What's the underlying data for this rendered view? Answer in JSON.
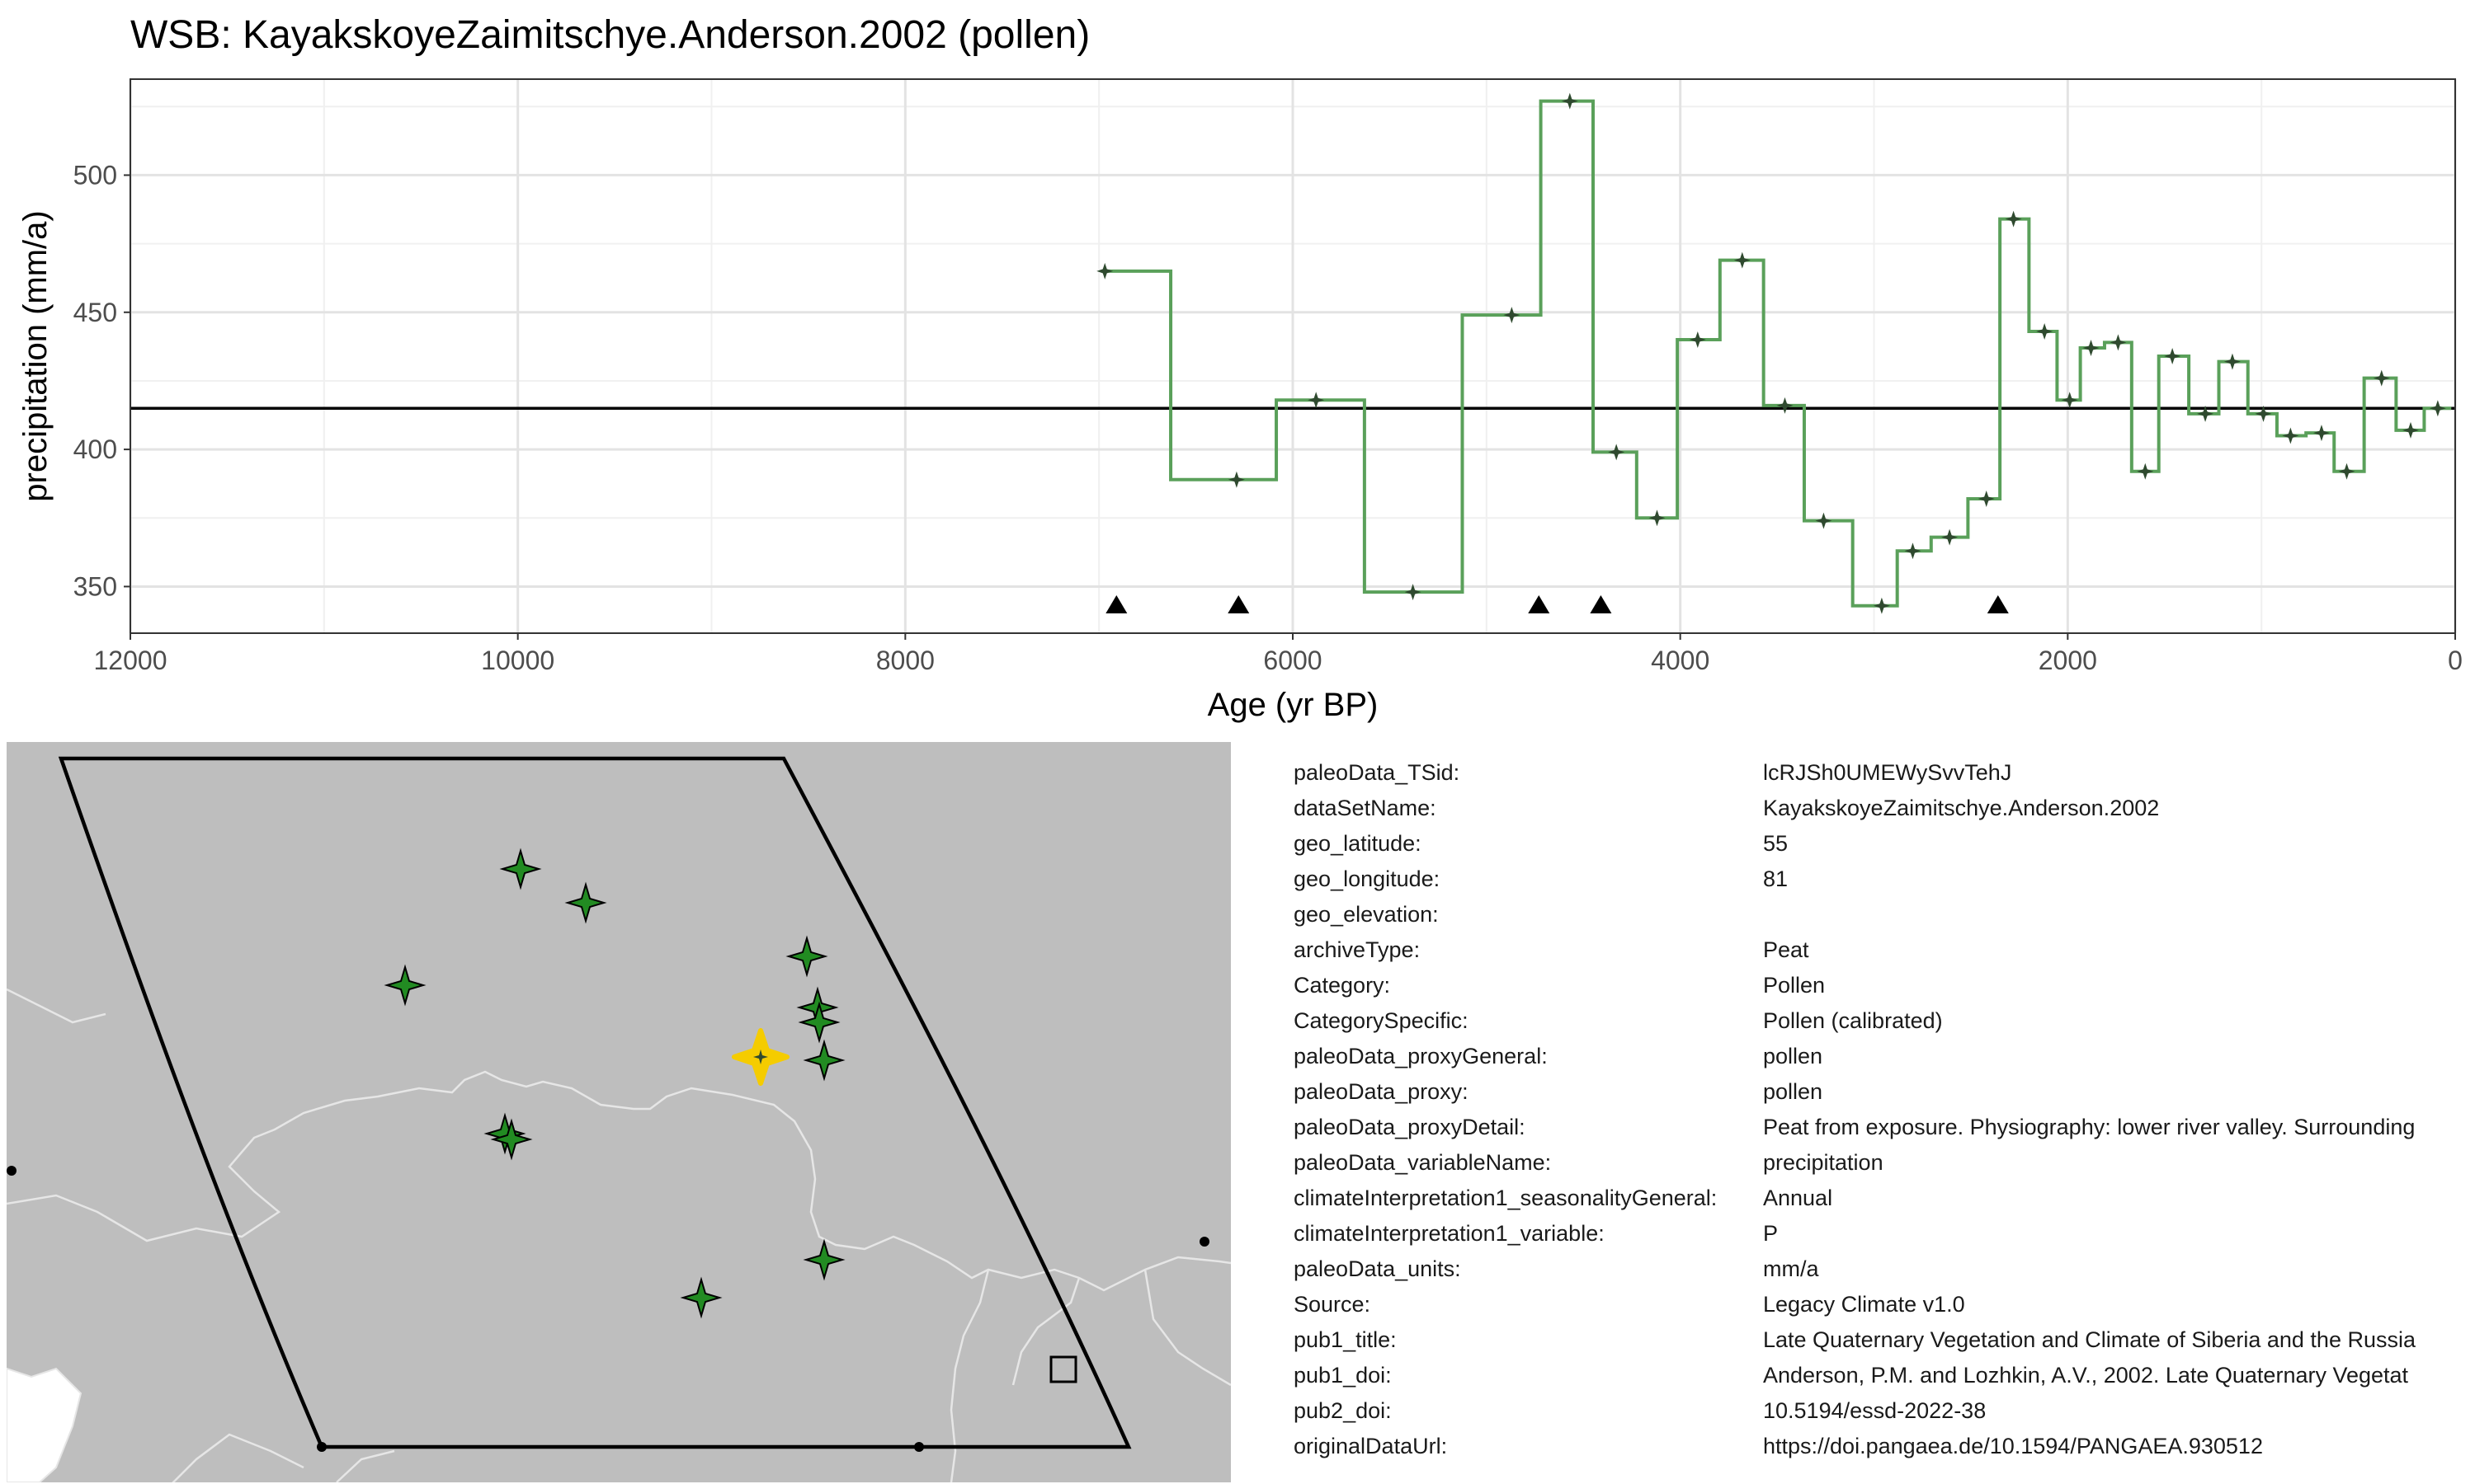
{
  "chart_data": {
    "type": "line",
    "title": "WSB: KayakskoyeZaimitschye.Anderson.2002 (pollen)",
    "xlabel": "Age (yr BP)",
    "ylabel": "precipitation (mm/a)",
    "x_reversed": true,
    "xlim": [
      12000,
      0
    ],
    "ylim": [
      333,
      535
    ],
    "x_ticks": [
      12000,
      10000,
      8000,
      6000,
      4000,
      2000,
      0
    ],
    "y_ticks": [
      350,
      400,
      450,
      500
    ],
    "grid": true,
    "mean_line": 415,
    "line_style": "step",
    "line_color": "#5aa05a",
    "point_color": "#2f4a2f",
    "series": [
      {
        "x": [
          6970,
          6290,
          5880,
          5380,
          4870,
          4570,
          4330,
          4120,
          3910,
          3680,
          3460,
          3260,
          2960,
          2800,
          2610,
          2420,
          2280,
          2120,
          1990,
          1880,
          1740,
          1600,
          1460,
          1290,
          1150,
          990,
          850,
          690,
          560,
          380,
          230,
          90
        ],
        "y": [
          465,
          389,
          418,
          348,
          449,
          527,
          399,
          375,
          440,
          469,
          416,
          374,
          343,
          363,
          368,
          382,
          484,
          443,
          418,
          437,
          439,
          392,
          434,
          413,
          432,
          413,
          405,
          406,
          392,
          426,
          407,
          415
        ]
      }
    ],
    "markers": {
      "shape": "triangle",
      "x": [
        6910,
        6280,
        4730,
        4410,
        2360
      ],
      "y_position": "bottom"
    }
  },
  "map": {
    "background_color": "#bebebe",
    "border_color": "#e6e6e6",
    "selected_site_color": "#f5cc00",
    "site_color": "#228b22",
    "site_icon": "four-point-star-icon",
    "marker_icons": [
      "dot-icon",
      "square-icon"
    ]
  },
  "metadata": [
    {
      "key": "paleoData_TSid:",
      "value": "lcRJSh0UMEWySvvTehJ"
    },
    {
      "key": "dataSetName:",
      "value": "KayakskoyeZaimitschye.Anderson.2002"
    },
    {
      "key": "geo_latitude:",
      "value": "55"
    },
    {
      "key": "geo_longitude:",
      "value": "81"
    },
    {
      "key": "geo_elevation:",
      "value": ""
    },
    {
      "key": "archiveType:",
      "value": "Peat"
    },
    {
      "key": "Category:",
      "value": "Pollen"
    },
    {
      "key": "CategorySpecific:",
      "value": "Pollen (calibrated)"
    },
    {
      "key": "paleoData_proxyGeneral:",
      "value": "pollen"
    },
    {
      "key": "paleoData_proxy:",
      "value": "pollen"
    },
    {
      "key": "paleoData_proxyDetail:",
      "value": "Peat from exposure. Physiography: lower river valley. Surrounding"
    },
    {
      "key": "paleoData_variableName:",
      "value": "precipitation"
    },
    {
      "key": "climateInterpretation1_seasonalityGeneral:",
      "value": "Annual"
    },
    {
      "key": "climateInterpretation1_variable:",
      "value": "P"
    },
    {
      "key": "paleoData_units:",
      "value": "mm/a"
    },
    {
      "key": "Source:",
      "value": "Legacy Climate v1.0"
    },
    {
      "key": "pub1_title:",
      "value": "Late Quaternary Vegetation and Climate of Siberia and the Russia"
    },
    {
      "key": "pub1_doi:",
      "value": "Anderson, P.M. and Lozhkin, A.V., 2002. Late Quaternary Vegetat"
    },
    {
      "key": "pub2_doi:",
      "value": "10.5194/essd-2022-38"
    },
    {
      "key": "originalDataUrl:",
      "value": "https://doi.pangaea.de/10.1594/PANGAEA.930512"
    }
  ]
}
